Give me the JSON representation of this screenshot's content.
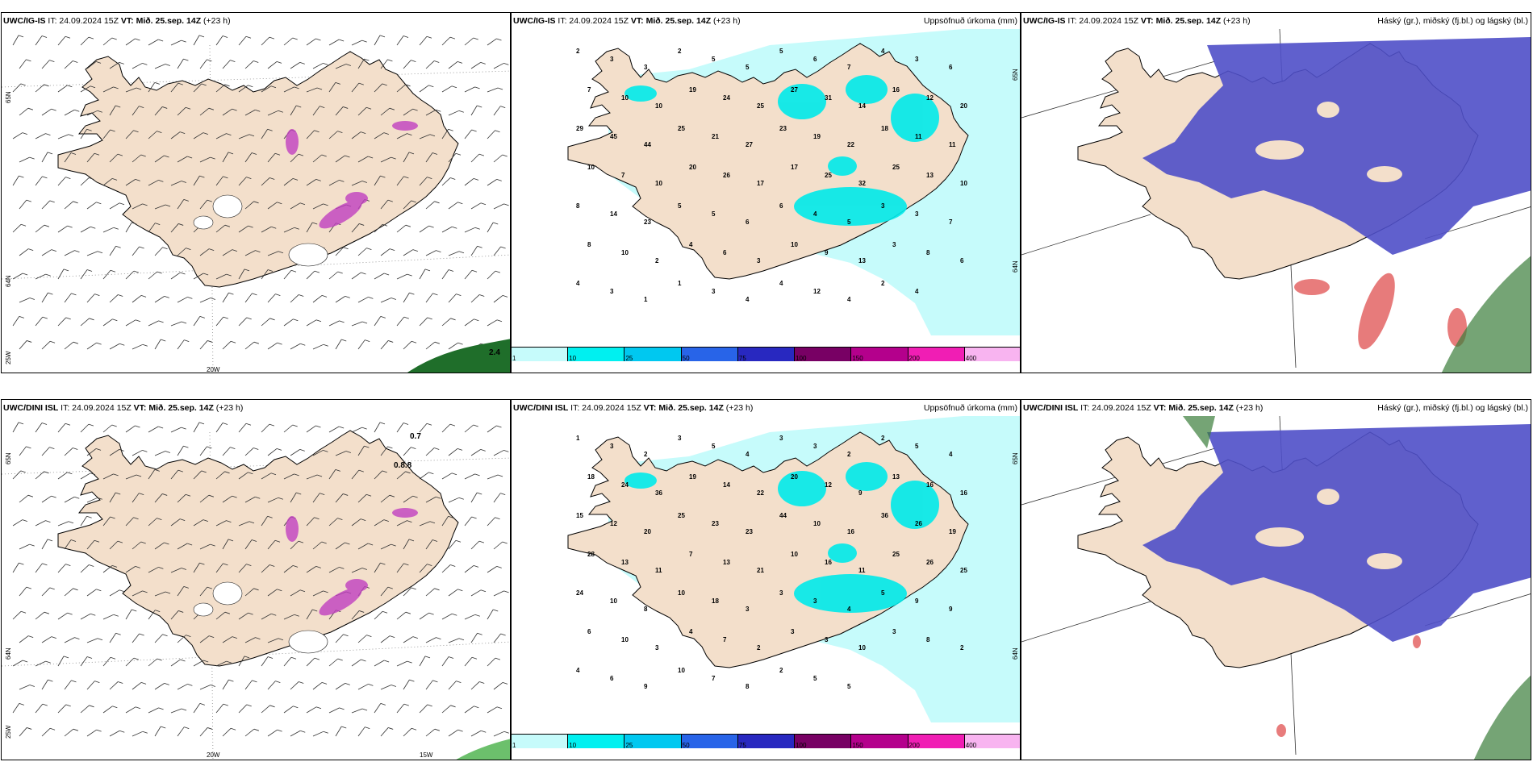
{
  "panels": [
    {
      "id": "ig-wind",
      "header_model": "UWC/IG-IS",
      "header_it": " IT: 24.09.2024 15Z ",
      "header_vt_label": "VT:",
      "header_vt": " Mið. 25.sep. 14Z",
      "header_offset": " (+23 h)",
      "title_right": "",
      "axis_labels": {
        "lat_top": "65N",
        "lat_mid": "64N",
        "lat_bottom": "25W",
        "lon_bottom": "20W",
        "lon_bottom2": ""
      },
      "value_labels": [
        "2.4"
      ]
    },
    {
      "id": "ig-precip",
      "header_model": "UWC/IG-IS",
      "header_it": " IT: 24.09.2024 15Z ",
      "header_vt_label": "VT:",
      "header_vt": " Mið. 25.sep. 14Z",
      "header_offset": " (+23 h)",
      "title_right": "Uppsöfnuð úrkoma (mm)",
      "axis_labels": {
        "lat_top": "65N",
        "lat_mid": "64N"
      },
      "precip_labels": [
        "2",
        "3",
        "3",
        "2",
        "5",
        "5",
        "5",
        "6",
        "7",
        "4",
        "3",
        "6",
        "7",
        "10",
        "10",
        "19",
        "24",
        "25",
        "27",
        "31",
        "14",
        "16",
        "12",
        "20",
        "29",
        "45",
        "44",
        "25",
        "21",
        "27",
        "23",
        "19",
        "22",
        "18",
        "11",
        "11",
        "10",
        "7",
        "10",
        "20",
        "26",
        "17",
        "17",
        "25",
        "32",
        "25",
        "13",
        "10",
        "8",
        "14",
        "23",
        "5",
        "5",
        "6",
        "6",
        "4",
        "5",
        "3",
        "3",
        "7",
        "8",
        "10",
        "2",
        "4",
        "6",
        "3",
        "10",
        "9",
        "13",
        "3",
        "8",
        "6",
        "4",
        "3",
        "1",
        "1",
        "3",
        "4",
        "4",
        "12",
        "4",
        "2",
        "4"
      ]
    },
    {
      "id": "ig-cloud",
      "header_model": "UWC/IG-IS",
      "header_it": " IT: 24.09.2024 15Z ",
      "header_vt_label": "VT:",
      "header_vt": " Mið. 25.sep. 14Z",
      "header_offset": " (+23 h)",
      "title_right": "Háský (gr.), miðský (fj.bl.) og lágský (bl.)"
    },
    {
      "id": "dini-wind",
      "header_model": "UWC/DINI ISL",
      "header_it": " IT: 24.09.2024 15Z ",
      "header_vt_label": "VT:",
      "header_vt": " Mið. 25.sep. 14Z",
      "header_offset": " (+23 h)",
      "title_right": "",
      "axis_labels": {
        "lat_top": "65N",
        "lat_mid": "64N",
        "lat_bottom": "25W",
        "lon_bottom": "20W",
        "lon_bottom2": "15W"
      },
      "value_labels": [
        "0.7",
        "0.8.8"
      ]
    },
    {
      "id": "dini-precip",
      "header_model": "UWC/DINI ISL",
      "header_it": " IT: 24.09.2024 15Z ",
      "header_vt_label": "VT:",
      "header_vt": " Mið. 25.sep. 14Z",
      "header_offset": " (+23 h)",
      "title_right": "Uppsöfnuð úrkoma (mm)",
      "axis_labels": {
        "lat_top": "65N",
        "lat_mid": "64N"
      },
      "precip_labels": [
        "1",
        "3",
        "2",
        "3",
        "5",
        "4",
        "3",
        "3",
        "2",
        "2",
        "5",
        "4",
        "18",
        "24",
        "36",
        "19",
        "14",
        "22",
        "20",
        "12",
        "9",
        "13",
        "16",
        "16",
        "15",
        "12",
        "20",
        "25",
        "23",
        "23",
        "44",
        "10",
        "16",
        "36",
        "26",
        "19",
        "28",
        "13",
        "11",
        "7",
        "13",
        "21",
        "10",
        "16",
        "11",
        "25",
        "26",
        "25",
        "24",
        "10",
        "8",
        "10",
        "18",
        "3",
        "3",
        "3",
        "4",
        "5",
        "9",
        "9",
        "6",
        "10",
        "3",
        "4",
        "7",
        "2",
        "3",
        "3",
        "10",
        "3",
        "8",
        "2",
        "4",
        "6",
        "9",
        "10",
        "7",
        "8",
        "2",
        "5",
        "5"
      ]
    },
    {
      "id": "dini-cloud",
      "header_model": "UWC/DINI ISL",
      "header_it": " IT: 24.09.2024 15Z ",
      "header_vt_label": "VT:",
      "header_vt": " Mið. 25.sep. 14Z",
      "header_offset": " (+23 h)",
      "title_right": "Háský (gr.), miðský (fj.bl.) og lágský (bl.)"
    }
  ],
  "precip_colorbar": {
    "labels": [
      "1",
      "10",
      "25",
      "50",
      "75",
      "100",
      "150",
      "200",
      "400"
    ],
    "colors": [
      "#c6fbfb",
      "#00f0f0",
      "#00c8f0",
      "#2864e8",
      "#2828c0",
      "#780064",
      "#b4008c",
      "#f01eb4",
      "#f8b4f0"
    ]
  },
  "colors": {
    "land": "#f3dfcb",
    "precip_light": "#c6fbfb",
    "precip_mid": "#00eaea",
    "high_cloud": "#3b7d3b",
    "mid_cloud": "#e05050",
    "low_cloud": "#4f4fc8",
    "convective": "#c040c0"
  }
}
